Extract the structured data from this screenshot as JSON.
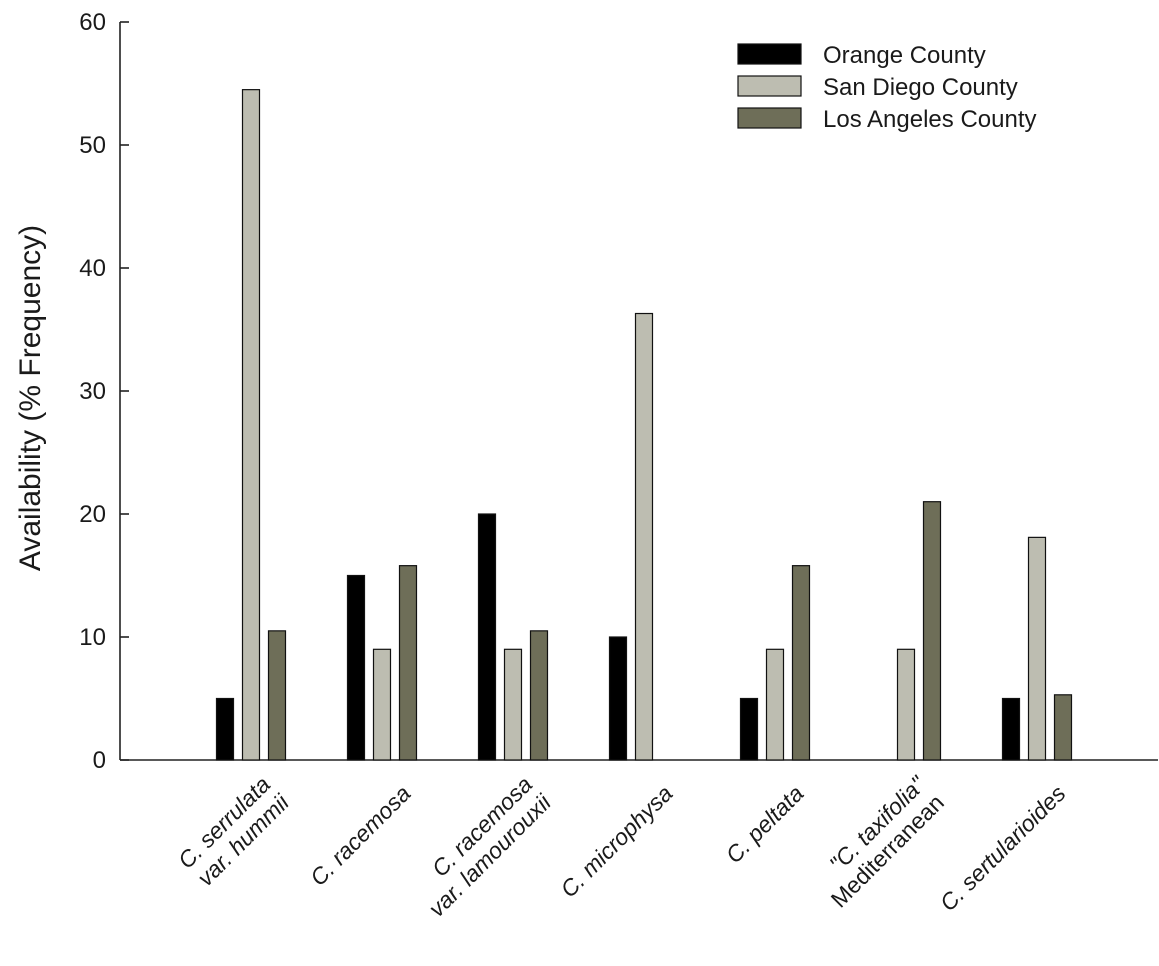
{
  "chart_data": {
    "type": "bar",
    "title": "",
    "xlabel": "",
    "ylabel": "Availability (% Frequency)",
    "ylim": [
      0,
      60
    ],
    "yticks": [
      0,
      10,
      20,
      30,
      40,
      50,
      60
    ],
    "grid": false,
    "legend_position": "top-right",
    "categories": [
      {
        "id": "serrulata",
        "lines": [
          {
            "italic": "C. serrulata",
            "plain": ""
          },
          {
            "italic": "var. hummii",
            "plain": ""
          }
        ]
      },
      {
        "id": "racemosa",
        "lines": [
          {
            "italic": "C. racemosa",
            "plain": ""
          }
        ]
      },
      {
        "id": "racemosa-lamourouxii",
        "lines": [
          {
            "italic": "C. racemosa",
            "plain": ""
          },
          {
            "italic": "var. lamourouxii",
            "plain": ""
          }
        ]
      },
      {
        "id": "microphysa",
        "lines": [
          {
            "italic": "C. microphysa",
            "plain": ""
          }
        ]
      },
      {
        "id": "peltata",
        "lines": [
          {
            "italic": "C. peltata",
            "plain": ""
          }
        ]
      },
      {
        "id": "taxifolia",
        "lines": [
          {
            "italic": "\"C. taxifolia\"",
            "plain": ""
          },
          {
            "italic": "",
            "plain": "Mediterranean"
          }
        ]
      },
      {
        "id": "sertularioides",
        "lines": [
          {
            "italic": "C. sertularioides",
            "plain": ""
          }
        ]
      }
    ],
    "series": [
      {
        "name": "Orange County",
        "color": "#000000",
        "values": [
          5,
          15,
          20,
          10,
          5,
          null,
          5
        ]
      },
      {
        "name": "San Diego County",
        "color": "#bdbdb1",
        "values": [
          54.5,
          9,
          9,
          36.3,
          9,
          9,
          18.1
        ]
      },
      {
        "name": "Los Angeles County",
        "color": "#6e6e58",
        "values": [
          10.5,
          15.8,
          10.5,
          null,
          15.8,
          21,
          5.3
        ]
      }
    ]
  }
}
